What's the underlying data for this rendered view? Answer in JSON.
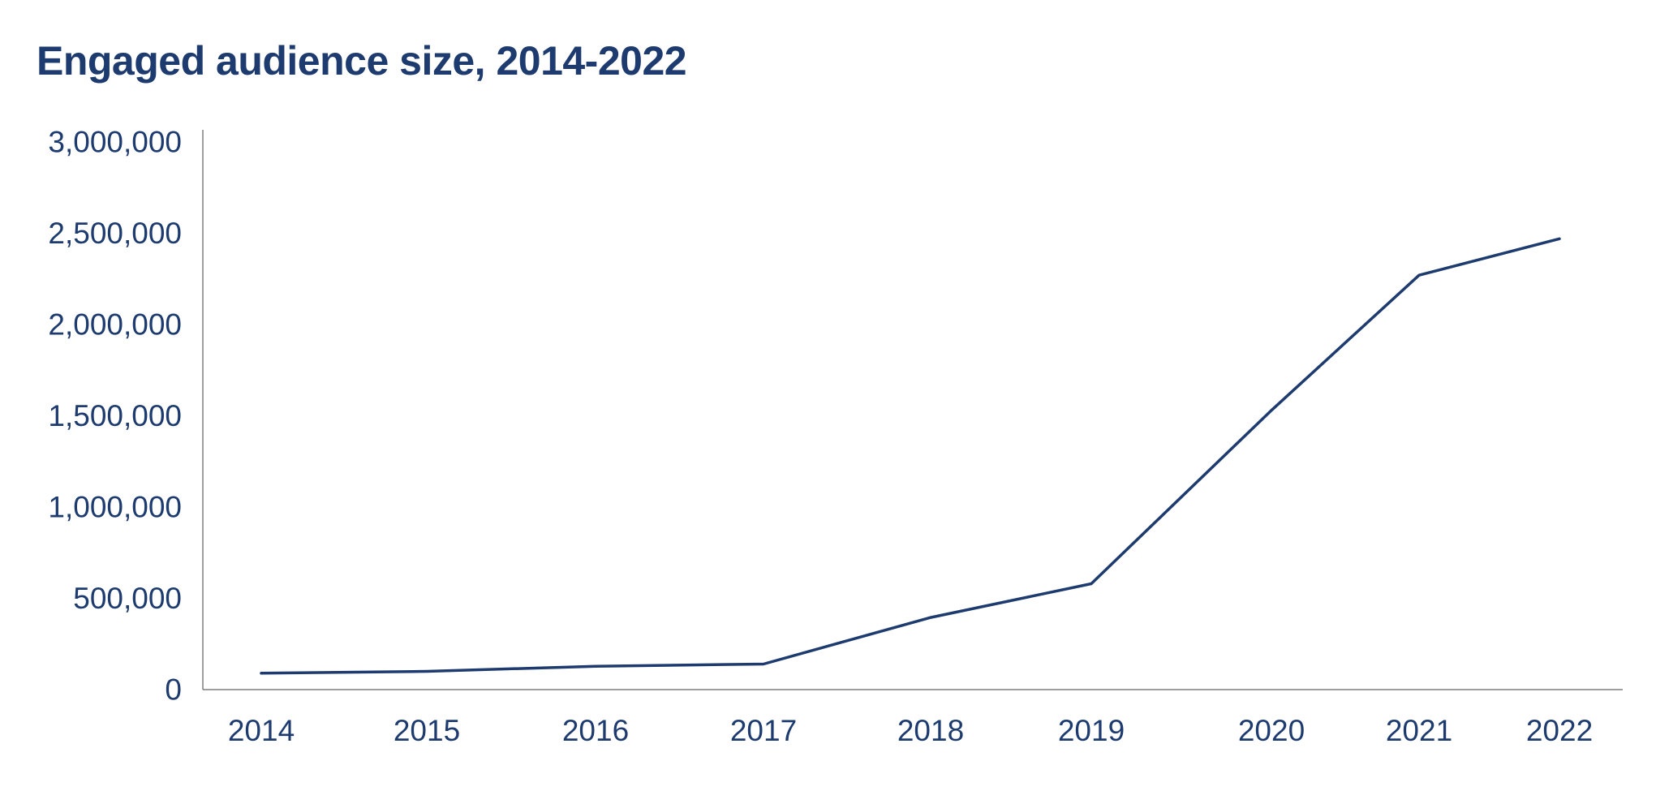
{
  "chart_data": {
    "type": "line",
    "title": "Engaged audience size, 2014-2022",
    "xlabel": "",
    "ylabel": "",
    "categories": [
      "2014",
      "2015",
      "2016",
      "2017",
      "2018",
      "2019",
      "2020",
      "2021",
      "2022"
    ],
    "series": [
      {
        "values": [
          90000,
          100000,
          128000,
          140000,
          395000,
          580000,
          1530000,
          2270000,
          2470000
        ]
      }
    ],
    "ylim": [
      0,
      3000000
    ],
    "yticks": [
      0,
      500000,
      1000000,
      1500000,
      2000000,
      2500000,
      3000000
    ],
    "ytick_labels": [
      "0",
      "500,000",
      "1,000,000",
      "1,500,000",
      "2,000,000",
      "2,500,000",
      "3,000,000"
    ],
    "grid": false,
    "legend": "none",
    "colors": {
      "line": "#1d3b6e",
      "text": "#1d3b6e",
      "axis": "#7f7f7f"
    }
  }
}
